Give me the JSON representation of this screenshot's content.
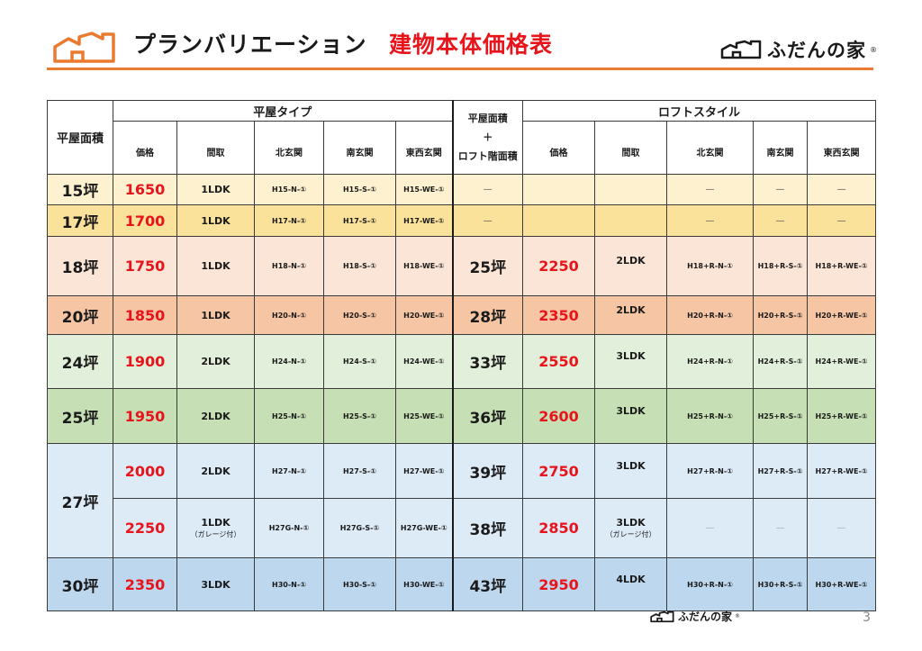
{
  "header": {
    "title": "プランバリエーション",
    "subtitle": "建物本体価格表",
    "brand": "ふだんの家",
    "brand_mark": "®"
  },
  "table": {
    "area_header": "平屋面積",
    "flat_group": "平屋タイプ",
    "loft_area_header": [
      "平屋面積",
      "＋",
      "ロフト階面積"
    ],
    "loft_group": "ロフトスタイル",
    "flat_cols": [
      "価格",
      "間取",
      "北玄関",
      "南玄関",
      "東西玄関"
    ],
    "loft_cols": [
      "価格",
      "間取",
      "北玄関",
      "南玄関",
      "東西玄関"
    ],
    "rows": [
      {
        "tsubo": "15坪",
        "price": "1650",
        "plan": "1LDK",
        "north": "H15-N-①",
        "south": "H15-S-①",
        "ew": "H15-WE-①",
        "loft_area": "—",
        "loft_price": "",
        "loft_plan": "",
        "loft_north": "—",
        "loft_south": "—",
        "loft_ew": "—"
      },
      {
        "tsubo": "17坪",
        "price": "1700",
        "plan": "1LDK",
        "north": "H17-N-①",
        "south": "H17-S-①",
        "ew": "H17-WE-①",
        "loft_area": "—",
        "loft_price": "",
        "loft_plan": "",
        "loft_north": "—",
        "loft_south": "—",
        "loft_ew": "—"
      },
      {
        "tsubo": "18坪",
        "price": "1750",
        "plan": "1LDK",
        "north": "H18-N-①",
        "south": "H18-S-①",
        "ew": "H18-WE-①",
        "loft_area": "25坪",
        "loft_price": "2250",
        "loft_plan": "2LDK",
        "loft_north": "H18+R-N-①",
        "loft_south": "H18+R-S-①",
        "loft_ew": "H18+R-WE-①"
      },
      {
        "tsubo": "20坪",
        "price": "1850",
        "plan": "1LDK",
        "north": "H20-N-①",
        "south": "H20-S-①",
        "ew": "H20-WE-①",
        "loft_area": "28坪",
        "loft_price": "2350",
        "loft_plan": "2LDK",
        "loft_north": "H20+R-N-①",
        "loft_south": "H20+R-S-①",
        "loft_ew": "H20+R-WE-①"
      },
      {
        "tsubo": "24坪",
        "price": "1900",
        "plan": "2LDK",
        "north": "H24-N-①",
        "south": "H24-S-①",
        "ew": "H24-WE-①",
        "loft_area": "33坪",
        "loft_price": "2550",
        "loft_plan": "3LDK",
        "loft_north": "H24+R-N-①",
        "loft_south": "H24+R-S-①",
        "loft_ew": "H24+R-WE-①"
      },
      {
        "tsubo": "25坪",
        "price": "1950",
        "plan": "2LDK",
        "north": "H25-N-①",
        "south": "H25-S-①",
        "ew": "H25-WE-①",
        "loft_area": "36坪",
        "loft_price": "2600",
        "loft_plan": "3LDK",
        "loft_north": "H25+R-N-①",
        "loft_south": "H25+R-S-①",
        "loft_ew": "H25+R-WE-①"
      },
      {
        "tsubo": "27坪",
        "price": "2000",
        "plan": "2LDK",
        "north": "H27-N-①",
        "south": "H27-S-①",
        "ew": "H27-WE-①",
        "loft_area": "39坪",
        "loft_price": "2750",
        "loft_plan": "3LDK",
        "loft_north": "H27+R-N-①",
        "loft_south": "H27+R-S-①",
        "loft_ew": "H27+R-WE-①"
      },
      {
        "price": "2250",
        "plan": "1LDK",
        "plan_note": "（ガレージ付）",
        "north": "H27G-N-①",
        "south": "H27G-S-①",
        "ew": "H27G-WE-①",
        "loft_area": "38坪",
        "loft_price": "2850",
        "loft_plan": "3LDK",
        "loft_plan_note": "（ガレージ付）",
        "loft_north": "—",
        "loft_south": "—",
        "loft_ew": "—"
      },
      {
        "tsubo": "30坪",
        "price": "2350",
        "plan": "3LDK",
        "north": "H30-N-①",
        "south": "H30-S-①",
        "ew": "H30-WE-①",
        "loft_area": "43坪",
        "loft_price": "2950",
        "loft_plan": "4LDK",
        "loft_north": "H30+R-N-①",
        "loft_south": "H30+R-S-①",
        "loft_ew": "H30+R-WE-①"
      }
    ]
  },
  "footer": {
    "brand": "ふだんの家",
    "brand_mark": "®",
    "page_number": "3"
  },
  "colors": {
    "accent_orange": "#ea7a30",
    "price_red": "#e8141b",
    "row_15": "#fdf1cf",
    "row_17": "#fbe29b",
    "row_18": "#fbe5d6",
    "row_20": "#f6c6a4",
    "row_24": "#e2efda",
    "row_25": "#c6dfb4",
    "row_27": "#ddebf7",
    "row_30": "#bdd7ee"
  },
  "icons": {
    "header_logo": "house-outline-icon",
    "brand_logo": "house-outline-icon"
  }
}
